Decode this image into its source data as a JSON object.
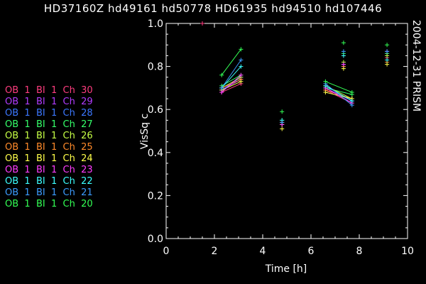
{
  "header": {
    "title": "HD37160Z hd49161   hd50778   HD61935   hd94510   hd107446",
    "date_instrument": "2004-12-31 PRISM"
  },
  "legend": [
    {
      "label": "OB  1  BI  1  Ch  30",
      "color": "#ff3d7f"
    },
    {
      "label": "OB  1  BI  1  Ch  29",
      "color": "#b13cff"
    },
    {
      "label": "OB  1  BI  1  Ch  28",
      "color": "#3c78ff"
    },
    {
      "label": "OB  1  BI  1  Ch  27",
      "color": "#35ff6a"
    },
    {
      "label": "OB  1  BI  1  Ch  26",
      "color": "#c6ff45"
    },
    {
      "label": "OB  1  BI  1  Ch  25",
      "color": "#ff8a2a"
    },
    {
      "label": "OB  1  BI  1  Ch  24",
      "color": "#ffff4a"
    },
    {
      "label": "OB  1  BI  1  Ch  23",
      "color": "#ff3dff"
    },
    {
      "label": "OB  1  BI  1  Ch  22",
      "color": "#3cffff"
    },
    {
      "label": "OB  1  BI  1  Ch  21",
      "color": "#3c9cff"
    },
    {
      "label": "OB  1  BI  1  Ch  20",
      "color": "#33ff55"
    }
  ],
  "chart_data": {
    "type": "scatter",
    "xlabel": "Time [h]",
    "ylabel": "VisSq c",
    "xlim": [
      0,
      10
    ],
    "ylim": [
      0,
      1.0
    ],
    "xticks": [
      "0",
      "2",
      "4",
      "6",
      "8",
      "10"
    ],
    "yticks": [
      "0.0",
      "0.2",
      "0.4",
      "0.6",
      "0.8",
      "1.0"
    ],
    "grid": false,
    "legend_placement": "left",
    "connected_groups": [
      [
        2.3,
        3.1
      ],
      [
        6.6,
        7.7
      ]
    ],
    "x": [
      1.5,
      2.3,
      3.1,
      4.8,
      6.6,
      7.35,
      7.7,
      9.15
    ],
    "series": [
      {
        "name": "OB 1 BI 1 Ch 30",
        "color": "#ff3d7f",
        "values": [
          1.0,
          0.68,
          0.72,
          0.53,
          0.69,
          0.81,
          0.63,
          0.84
        ]
      },
      {
        "name": "OB 1 BI 1 Ch 29",
        "color": "#b13cff",
        "values": [
          null,
          0.69,
          0.74,
          0.54,
          0.7,
          0.8,
          0.64,
          0.85
        ]
      },
      {
        "name": "OB 1 BI 1 Ch 28",
        "color": "#3c78ff",
        "values": [
          null,
          0.69,
          0.75,
          0.53,
          0.71,
          0.81,
          0.64,
          0.86
        ]
      },
      {
        "name": "OB 1 BI 1 Ch 27",
        "color": "#35ff6a",
        "values": [
          null,
          0.71,
          0.76,
          0.55,
          0.7,
          0.86,
          0.67,
          0.86
        ]
      },
      {
        "name": "OB 1 BI 1 Ch 26",
        "color": "#c6ff45",
        "values": [
          null,
          0.7,
          0.75,
          0.54,
          0.71,
          0.82,
          0.65,
          0.85
        ]
      },
      {
        "name": "OB 1 BI 1 Ch 25",
        "color": "#ff8a2a",
        "values": [
          null,
          0.7,
          0.74,
          0.53,
          0.69,
          0.8,
          0.65,
          0.82
        ]
      },
      {
        "name": "OB 1 BI 1 Ch 24",
        "color": "#ffff4a",
        "values": [
          null,
          0.69,
          0.73,
          0.51,
          0.68,
          0.79,
          0.65,
          0.81
        ]
      },
      {
        "name": "OB 1 BI 1 Ch 23",
        "color": "#ff3dff",
        "values": [
          null,
          0.68,
          0.76,
          0.53,
          0.7,
          0.81,
          0.63,
          0.87
        ]
      },
      {
        "name": "OB 1 BI 1 Ch 22",
        "color": "#3cffff",
        "values": [
          null,
          0.7,
          0.8,
          0.55,
          0.71,
          0.85,
          0.64,
          0.83
        ]
      },
      {
        "name": "OB 1 BI 1 Ch 21",
        "color": "#3c9cff",
        "values": [
          null,
          0.7,
          0.83,
          0.54,
          0.72,
          0.87,
          0.62,
          0.87
        ]
      },
      {
        "name": "OB 1 BI 1 Ch 20",
        "color": "#33ff55",
        "values": [
          null,
          0.76,
          0.88,
          0.59,
          0.73,
          0.91,
          0.68,
          0.9
        ]
      }
    ]
  }
}
